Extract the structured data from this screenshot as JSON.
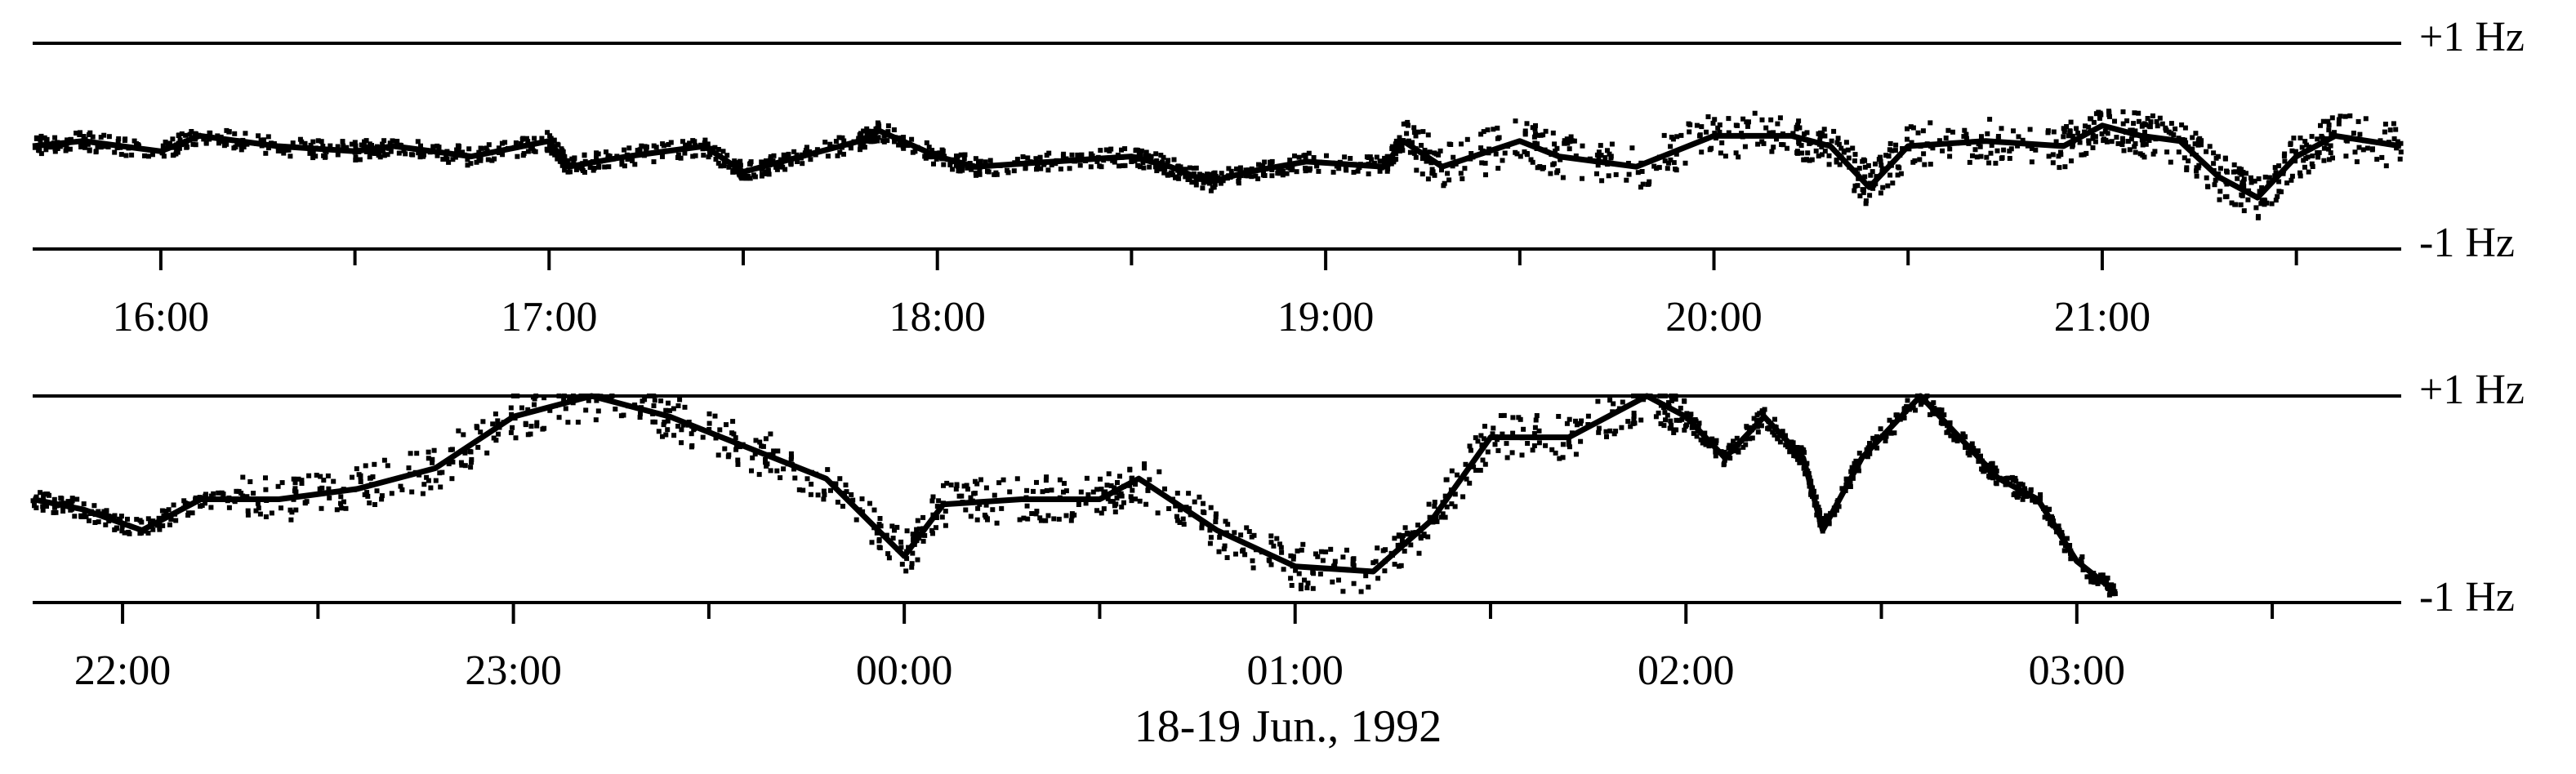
{
  "figure": {
    "caption": "18-19 Jun., 1992",
    "colors": {
      "trace": "#000000",
      "axis": "#000000",
      "background": "#ffffff"
    }
  },
  "chart_data": [
    {
      "type": "scatter",
      "y_top_label": "+1 Hz",
      "y_bottom_label": "-1 Hz",
      "ylim": [
        -1,
        1
      ],
      "grid": false,
      "x_unit": "hours (local time)",
      "xlim": [
        15.67,
        21.77
      ],
      "tick_labels": [
        "16:00",
        "17:00",
        "18:00",
        "19:00",
        "20:00",
        "21:00"
      ],
      "tick_values": [
        16,
        17,
        18,
        19,
        20,
        21
      ],
      "minor_ticks": [
        16.5,
        17.5,
        18.5,
        19.5,
        20.5,
        21.5
      ],
      "trace": {
        "x": [
          15.67,
          15.8,
          16.0,
          16.1,
          16.3,
          16.5,
          16.6,
          16.8,
          17.0,
          17.05,
          17.2,
          17.4,
          17.5,
          17.6,
          17.8,
          17.85,
          18.0,
          18.1,
          18.3,
          18.5,
          18.6,
          18.7,
          18.8,
          18.95,
          19.15,
          19.2,
          19.3,
          19.5,
          19.6,
          19.8,
          20.0,
          20.2,
          20.3,
          20.4,
          20.5,
          20.7,
          20.9,
          21.0,
          21.1,
          21.2,
          21.3,
          21.4,
          21.5,
          21.6,
          21.77
        ],
        "y": [
          0.0,
          0.05,
          -0.05,
          0.1,
          0.0,
          -0.05,
          0.0,
          -0.1,
          0.05,
          -0.2,
          -0.1,
          0.0,
          -0.25,
          -0.15,
          0.05,
          0.15,
          -0.1,
          -0.2,
          -0.15,
          -0.1,
          -0.2,
          -0.35,
          -0.25,
          -0.15,
          -0.2,
          0.05,
          -0.2,
          0.05,
          -0.1,
          -0.2,
          0.1,
          0.1,
          0.0,
          -0.4,
          0.0,
          0.05,
          0.0,
          0.2,
          0.1,
          0.05,
          -0.3,
          -0.5,
          -0.1,
          0.1,
          0.0
        ]
      }
    },
    {
      "type": "scatter",
      "y_top_label": "+1 Hz",
      "y_bottom_label": "-1 Hz",
      "ylim": [
        -1,
        1
      ],
      "grid": false,
      "x_unit": "hours (local time, past midnight continues past 24)",
      "xlim": [
        21.77,
        27.83
      ],
      "tick_labels": [
        "22:00",
        "23:00",
        "00:00",
        "01:00",
        "02:00",
        "03:00"
      ],
      "tick_values": [
        22,
        23,
        24,
        25,
        26,
        27
      ],
      "minor_ticks": [
        22.5,
        23.5,
        24.5,
        25.5,
        26.5,
        27.5
      ],
      "trace": {
        "x": [
          21.77,
          21.9,
          22.05,
          22.2,
          22.4,
          22.6,
          22.8,
          23.0,
          23.2,
          23.4,
          23.6,
          23.8,
          24.0,
          24.1,
          24.3,
          24.5,
          24.6,
          24.8,
          25.0,
          25.2,
          25.35,
          25.5,
          25.7,
          25.9,
          26.0,
          26.1,
          26.2,
          26.3,
          26.35,
          26.45,
          26.6,
          26.7,
          26.8,
          26.9,
          27.0,
          27.1
        ],
        "y": [
          0.0,
          -0.1,
          -0.3,
          0.0,
          0.0,
          0.1,
          0.3,
          0.8,
          1.0,
          0.8,
          0.5,
          0.2,
          -0.55,
          -0.05,
          0.0,
          0.0,
          0.2,
          -0.3,
          -0.65,
          -0.7,
          -0.2,
          0.6,
          0.6,
          1.0,
          0.8,
          0.4,
          0.8,
          0.4,
          -0.3,
          0.4,
          1.0,
          0.6,
          0.2,
          0.0,
          -0.6,
          -0.9
        ]
      }
    }
  ]
}
